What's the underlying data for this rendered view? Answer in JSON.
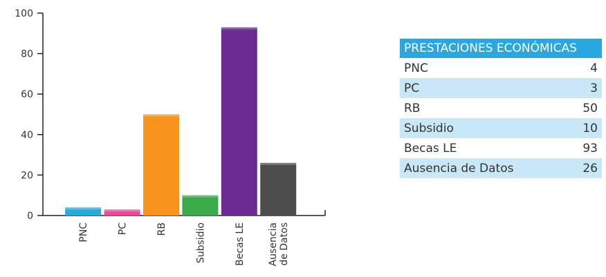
{
  "chart_data": {
    "type": "bar",
    "categories": [
      "PNC",
      "PC",
      "RB",
      "Subsidio",
      "Becas LE",
      "Ausencia de Datos"
    ],
    "values": [
      4,
      3,
      50,
      10,
      93,
      26
    ],
    "colors": [
      "#29a9e0",
      "#e84a9a",
      "#f7941d",
      "#3aaa4a",
      "#6a2c91",
      "#4d4d4d"
    ],
    "ylim": [
      0,
      100
    ],
    "yticks": [
      0,
      20,
      40,
      60,
      80,
      100
    ]
  },
  "table": {
    "header": "PRESTACIONES ECONÓMICAS",
    "rows": [
      [
        "PNC",
        4
      ],
      [
        "PC",
        3
      ],
      [
        "RB",
        50
      ],
      [
        "Subsidio",
        10
      ],
      [
        "Becas LE",
        93
      ],
      [
        "Ausencia de Datos",
        26
      ]
    ]
  }
}
